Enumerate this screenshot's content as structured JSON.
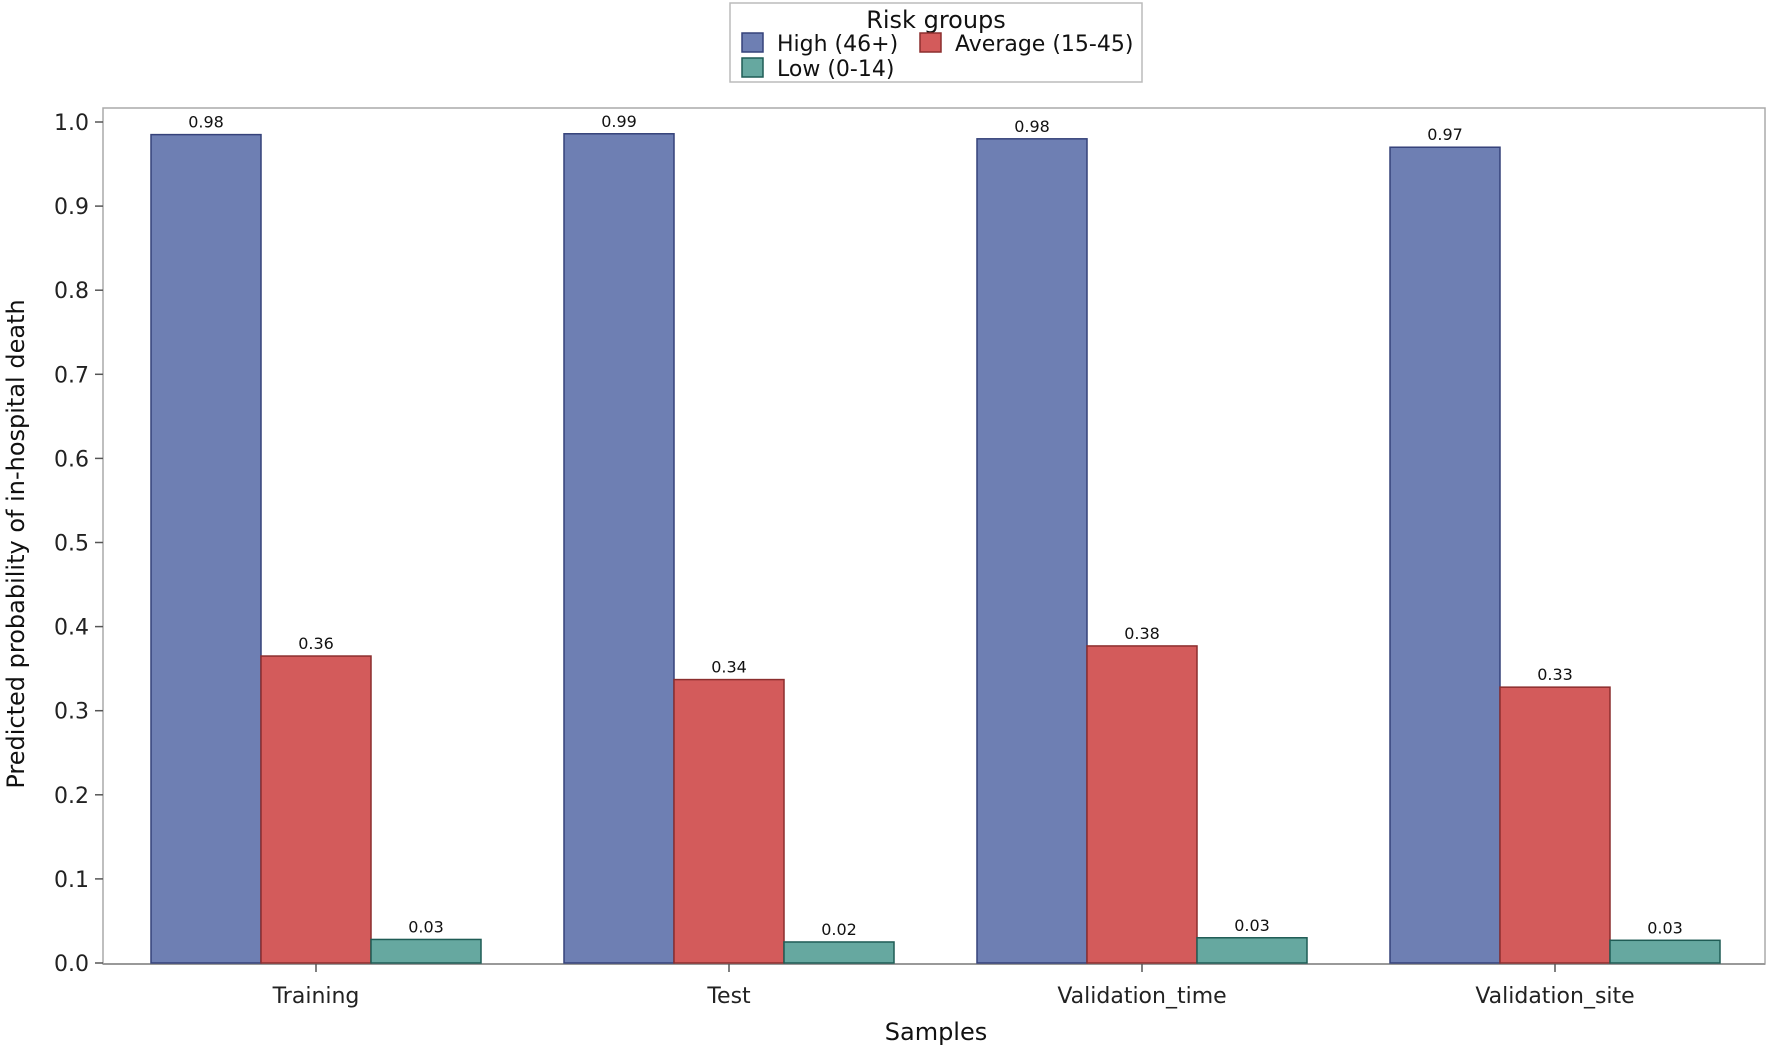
{
  "chart_data": {
    "type": "bar",
    "categories": [
      "Training",
      "Test",
      "Validation_time",
      "Validation_site"
    ],
    "series": [
      {
        "name": "High (46+)",
        "color": "#6e7fb3",
        "stroke": "#35427a",
        "values": [
          0.985,
          0.986,
          0.98,
          0.97
        ],
        "labels": [
          "0.98",
          "0.99",
          "0.98",
          "0.97"
        ]
      },
      {
        "name": "Average (15-45)",
        "color": "#d35b5b",
        "stroke": "#8c2e2e",
        "values": [
          0.365,
          0.337,
          0.377,
          0.328
        ],
        "labels": [
          "0.36",
          "0.34",
          "0.38",
          "0.33"
        ]
      },
      {
        "name": "Low (0-14)",
        "color": "#66a8a0",
        "stroke": "#1f5c55",
        "values": [
          0.028,
          0.025,
          0.03,
          0.027
        ],
        "labels": [
          "0.03",
          "0.02",
          "0.03",
          "0.03"
        ]
      }
    ],
    "title": "",
    "xlabel": "Samples",
    "ylabel": "Predicted probability of in-hospital death",
    "ylim": [
      0,
      1.0
    ],
    "yticks": [
      "0.0",
      "0.1",
      "0.2",
      "0.3",
      "0.4",
      "0.5",
      "0.6",
      "0.7",
      "0.8",
      "0.9",
      "1.0"
    ],
    "legend": {
      "title": "Risk groups",
      "placement": "top-center"
    },
    "grid": false
  }
}
